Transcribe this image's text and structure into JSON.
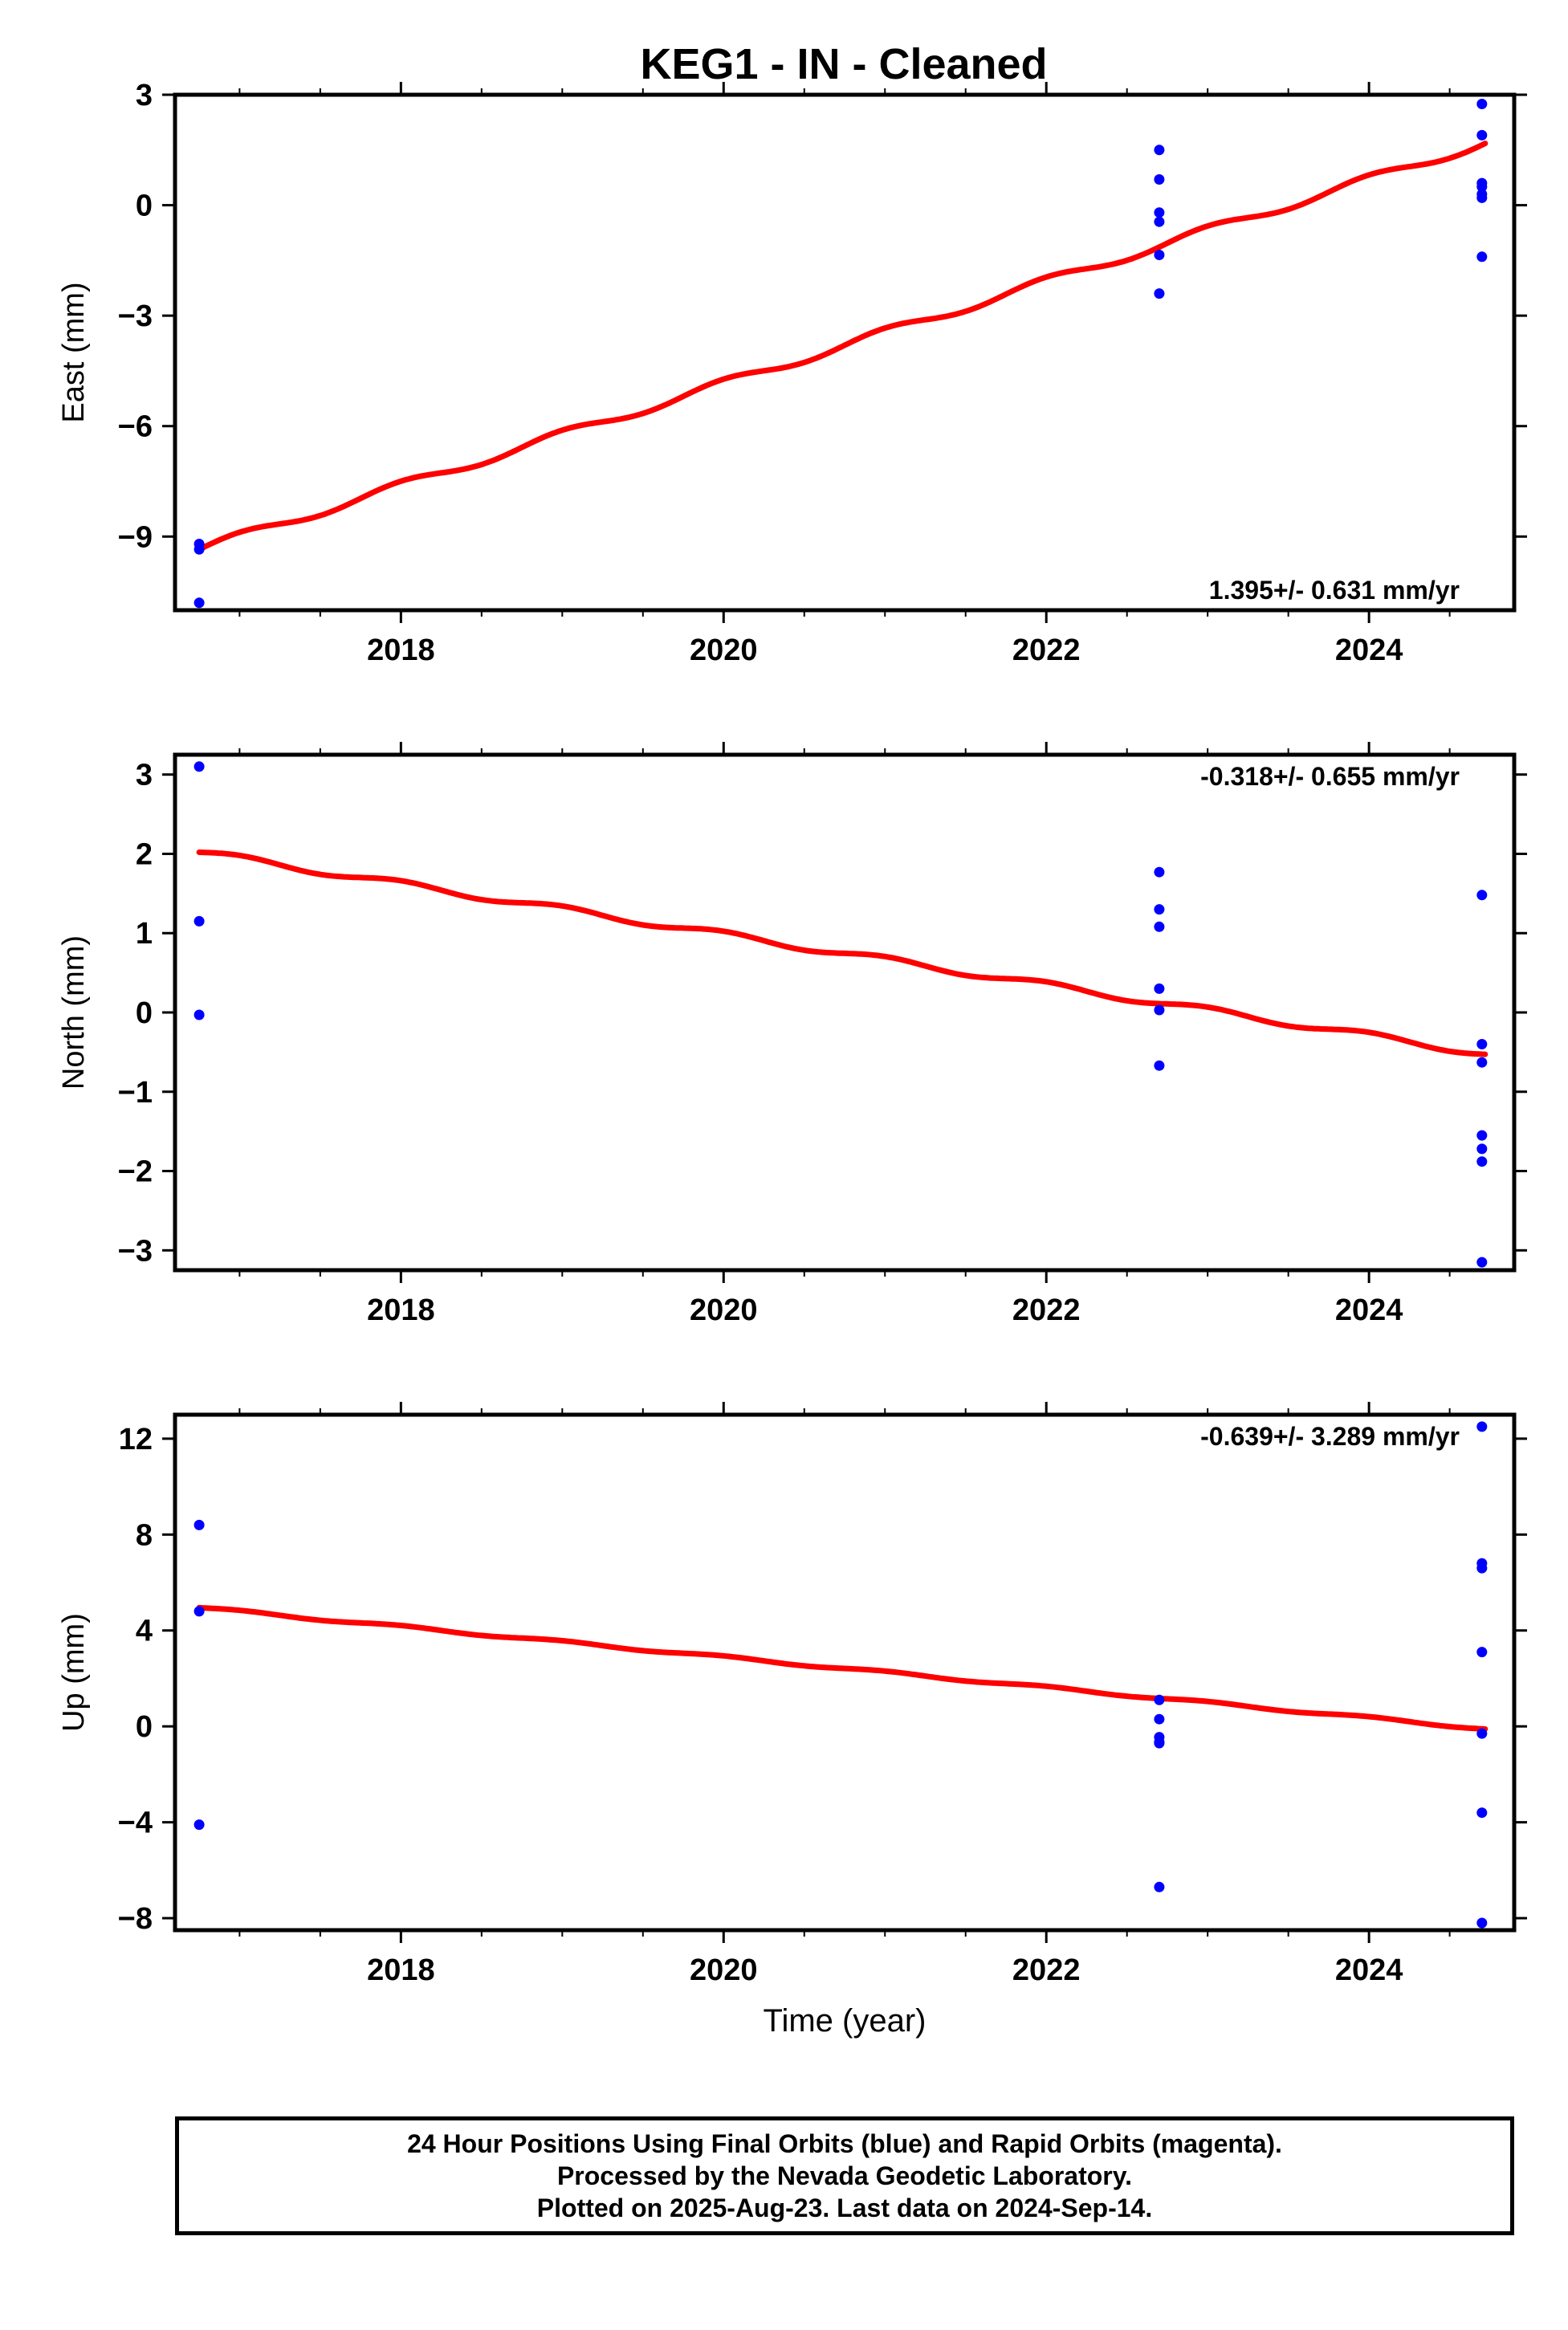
{
  "title": "KEG1  - IN - Cleaned",
  "colors": {
    "fit": "#ff0000",
    "points": "#0000ff",
    "frame": "#000000"
  },
  "chart_data": [
    {
      "type": "scatter",
      "ylabel": "East (mm)",
      "xlabel": "",
      "rate_label": "1.395+/- 0.631 mm/yr",
      "xlim": [
        2016.6,
        2024.9
      ],
      "ylim": [
        -11.0,
        3.0
      ],
      "x_ticks": [
        2018,
        2020,
        2022,
        2024
      ],
      "x_tick_labels": [
        "2018",
        "2020",
        "2022",
        "2024"
      ],
      "y_ticks": [
        -9,
        -6,
        -3,
        0,
        3
      ],
      "y_tick_labels": [
        "−9",
        "−6",
        "−3",
        "0",
        "3"
      ],
      "grid": false,
      "points": [
        [
          2016.75,
          -9.2
        ],
        [
          2016.75,
          -9.35
        ],
        [
          2016.75,
          -10.8
        ],
        [
          2022.7,
          1.5
        ],
        [
          2022.7,
          0.7
        ],
        [
          2022.7,
          -0.2
        ],
        [
          2022.7,
          -0.45
        ],
        [
          2022.7,
          -1.35
        ],
        [
          2022.7,
          -2.4
        ],
        [
          2024.7,
          2.75
        ],
        [
          2024.7,
          1.9
        ],
        [
          2024.7,
          0.6
        ],
        [
          2024.7,
          0.5
        ],
        [
          2024.7,
          0.3
        ],
        [
          2024.7,
          0.2
        ],
        [
          2024.7,
          -1.4
        ]
      ],
      "fit": {
        "x0": 2016.75,
        "y0": -9.35,
        "x1": 2024.72,
        "y1": 1.7,
        "seasonal_amplitude": 0.12
      }
    },
    {
      "type": "scatter",
      "ylabel": "North (mm)",
      "xlabel": "",
      "rate_label": "-0.318+/- 0.655 mm/yr",
      "xlim": [
        2016.6,
        2024.9
      ],
      "ylim": [
        -3.25,
        3.25
      ],
      "x_ticks": [
        2018,
        2020,
        2022,
        2024
      ],
      "x_tick_labels": [
        "2018",
        "2020",
        "2022",
        "2024"
      ],
      "y_ticks": [
        -3,
        -2,
        -1,
        0,
        1,
        2,
        3
      ],
      "y_tick_labels": [
        "−3",
        "−2",
        "−1",
        "0",
        "1",
        "2",
        "3"
      ],
      "grid": false,
      "points": [
        [
          2016.75,
          3.1
        ],
        [
          2016.75,
          1.15
        ],
        [
          2016.75,
          -0.03
        ],
        [
          2022.7,
          1.77
        ],
        [
          2022.7,
          1.3
        ],
        [
          2022.7,
          1.08
        ],
        [
          2022.7,
          0.3
        ],
        [
          2022.7,
          0.03
        ],
        [
          2022.7,
          -0.67
        ],
        [
          2024.7,
          1.48
        ],
        [
          2024.7,
          -0.4
        ],
        [
          2024.7,
          -0.63
        ],
        [
          2024.7,
          -1.55
        ],
        [
          2024.7,
          -1.72
        ],
        [
          2024.7,
          -1.88
        ],
        [
          2024.7,
          -3.15
        ]
      ],
      "fit": {
        "x0": 2016.75,
        "y0": 2.02,
        "x1": 2024.72,
        "y1": -0.52,
        "seasonal_amplitude": 0.04
      }
    },
    {
      "type": "scatter",
      "ylabel": "Up (mm)",
      "xlabel": "Time (year)",
      "rate_label": "-0.639+/- 3.289 mm/yr",
      "xlim": [
        2016.6,
        2024.9
      ],
      "ylim": [
        -8.5,
        13.0
      ],
      "x_ticks": [
        2018,
        2020,
        2022,
        2024
      ],
      "x_tick_labels": [
        "2018",
        "2020",
        "2022",
        "2024"
      ],
      "y_ticks": [
        -8,
        -4,
        0,
        4,
        8,
        12
      ],
      "y_tick_labels": [
        "−8",
        "−4",
        "0",
        "4",
        "8",
        "12"
      ],
      "grid": false,
      "points": [
        [
          2016.75,
          8.4
        ],
        [
          2016.75,
          4.8
        ],
        [
          2016.75,
          -4.1
        ],
        [
          2022.7,
          1.1
        ],
        [
          2022.7,
          0.3
        ],
        [
          2022.7,
          -0.45
        ],
        [
          2022.7,
          -0.65
        ],
        [
          2022.7,
          -0.7
        ],
        [
          2022.7,
          -6.7
        ],
        [
          2024.7,
          12.5
        ],
        [
          2024.7,
          6.8
        ],
        [
          2024.7,
          6.6
        ],
        [
          2024.7,
          3.1
        ],
        [
          2024.7,
          -0.3
        ],
        [
          2024.7,
          -3.6
        ],
        [
          2024.7,
          -8.2
        ]
      ],
      "fit": {
        "x0": 2016.75,
        "y0": 4.95,
        "x1": 2024.72,
        "y1": -0.1,
        "seasonal_amplitude": 0.05
      }
    }
  ],
  "footer": {
    "line1": "24 Hour Positions Using Final Orbits (blue) and Rapid Orbits (magenta).",
    "line2": "Processed by the Nevada Geodetic Laboratory.",
    "line3": "Plotted on 2025-Aug-23. Last data on 2024-Sep-14."
  }
}
